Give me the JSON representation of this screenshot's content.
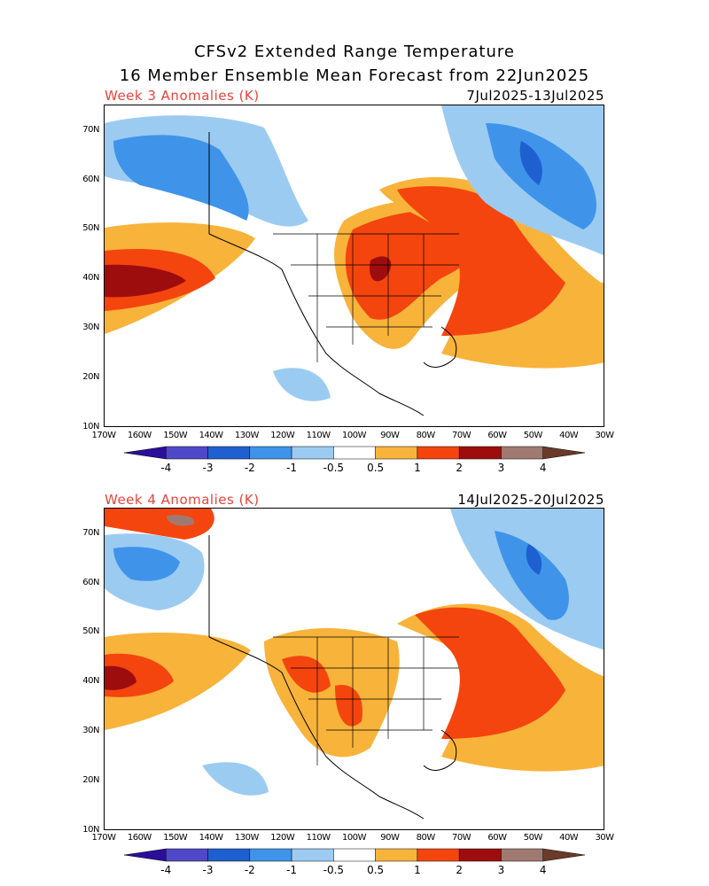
{
  "header": {
    "line1": "CFSv2 Extended Range Temperature",
    "line2": "16 Member Ensemble Mean Forecast from 22Jun2025"
  },
  "panels": [
    {
      "label": "Week 3 Anomalies (K)",
      "dates": "7Jul2025-13Jul2025"
    },
    {
      "label": "Week 4 Anomalies (K)",
      "dates": "14Jul2025-20Jul2025"
    }
  ],
  "axes": {
    "lat_labels": [
      "70N",
      "60N",
      "50N",
      "40N",
      "30N",
      "20N",
      "10N"
    ],
    "lon_labels": [
      "170W",
      "160W",
      "150W",
      "140W",
      "130W",
      "120W",
      "110W",
      "100W",
      "90W",
      "80W",
      "70W",
      "60W",
      "50W",
      "40W",
      "30W"
    ]
  },
  "legend": {
    "labels": [
      "-4",
      "-3",
      "-2",
      "-1",
      "-0.5",
      "0.5",
      "1",
      "2",
      "3",
      "4"
    ],
    "colors": [
      "#2a0f9a",
      "#4f49c9",
      "#1f60d0",
      "#3f94ea",
      "#9ccbf2",
      "#ffffff",
      "#f8b33b",
      "#f4450e",
      "#9e0d0d",
      "#a07a70",
      "#6b3a2a"
    ]
  }
}
